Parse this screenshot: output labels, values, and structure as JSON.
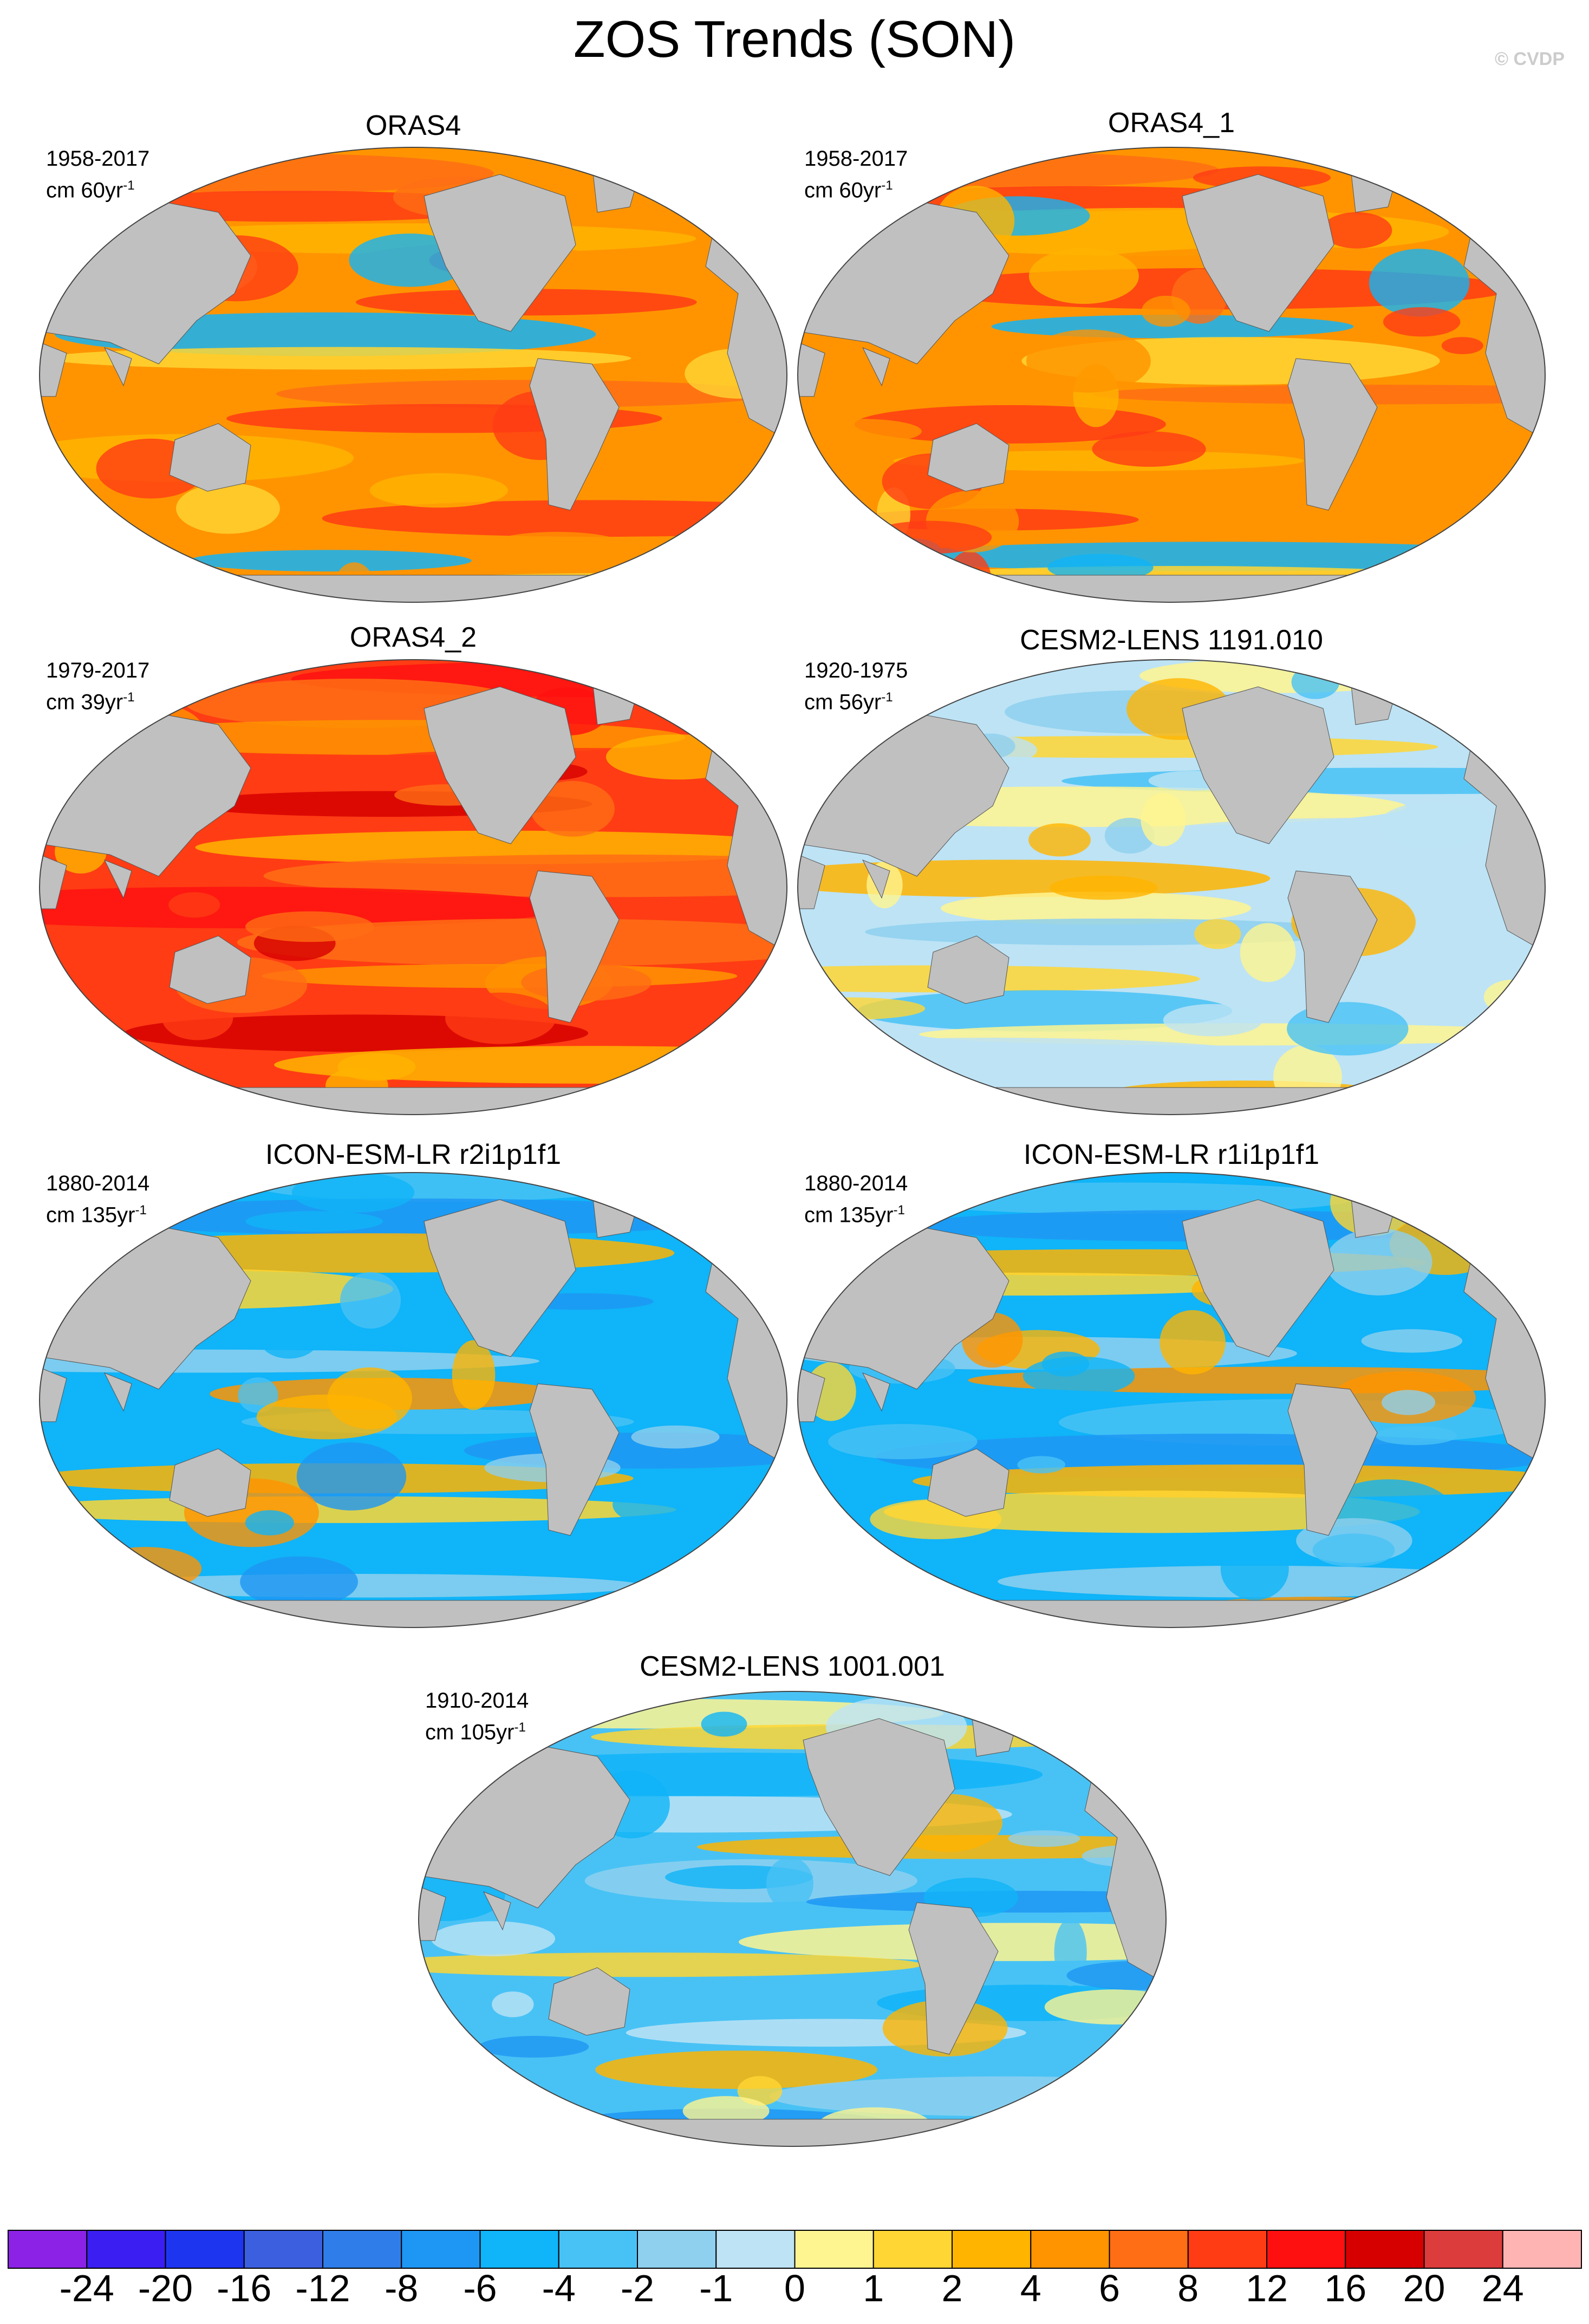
{
  "title": "ZOS Trends (SON)",
  "copyright": "© CVDP",
  "chart_data": [
    {
      "type": "heatmap",
      "title": "ORAS4",
      "period": "1958-2017",
      "units_prefix": "cm 60yr",
      "units_sup": "-1",
      "pattern": "warm"
    },
    {
      "type": "heatmap",
      "title": "ORAS4_1",
      "period": "1958-2017",
      "units_prefix": "cm 60yr",
      "units_sup": "-1",
      "pattern": "warm"
    },
    {
      "type": "heatmap",
      "title": "ORAS4_2",
      "period": "1979-2017",
      "units_prefix": "cm 39yr",
      "units_sup": "-1",
      "pattern": "hot"
    },
    {
      "type": "heatmap",
      "title": "CESM2-LENS 1191.010",
      "period": "1920-1975",
      "units_prefix": "cm 56yr",
      "units_sup": "-1",
      "pattern": "mixed-cool"
    },
    {
      "type": "heatmap",
      "title": "ICON-ESM-LR r2i1p1f1",
      "period": "1880-2014",
      "units_prefix": "cm 135yr",
      "units_sup": "-1",
      "pattern": "cool-center"
    },
    {
      "type": "heatmap",
      "title": "ICON-ESM-LR r1i1p1f1",
      "period": "1880-2014",
      "units_prefix": "cm 135yr",
      "units_sup": "-1",
      "pattern": "cool-center"
    },
    {
      "type": "heatmap",
      "title": "CESM2-LENS 1001.001",
      "period": "1910-2014",
      "units_prefix": "cm 105yr",
      "units_sup": "-1",
      "pattern": "mixed"
    }
  ],
  "colorbar": {
    "labels": [
      "-24",
      "-20",
      "-16",
      "-12",
      "-8",
      "-6",
      "-4",
      "-2",
      "-1",
      "0",
      "1",
      "2",
      "4",
      "6",
      "8",
      "12",
      "16",
      "20",
      "24"
    ],
    "colors": [
      "#8b22e6",
      "#3a1ef2",
      "#1e35f0",
      "#3c5fe0",
      "#2f7de8",
      "#1e96f3",
      "#10b4f8",
      "#48c2f5",
      "#8ed0ee",
      "#bde3f5",
      "#fff590",
      "#ffd633",
      "#ffb400",
      "#ff9400",
      "#ff6e14",
      "#ff3c14",
      "#ff1010",
      "#d60000",
      "#dc3c3c",
      "#ffb4b4"
    ]
  },
  "land_color": "#c0c0c0"
}
